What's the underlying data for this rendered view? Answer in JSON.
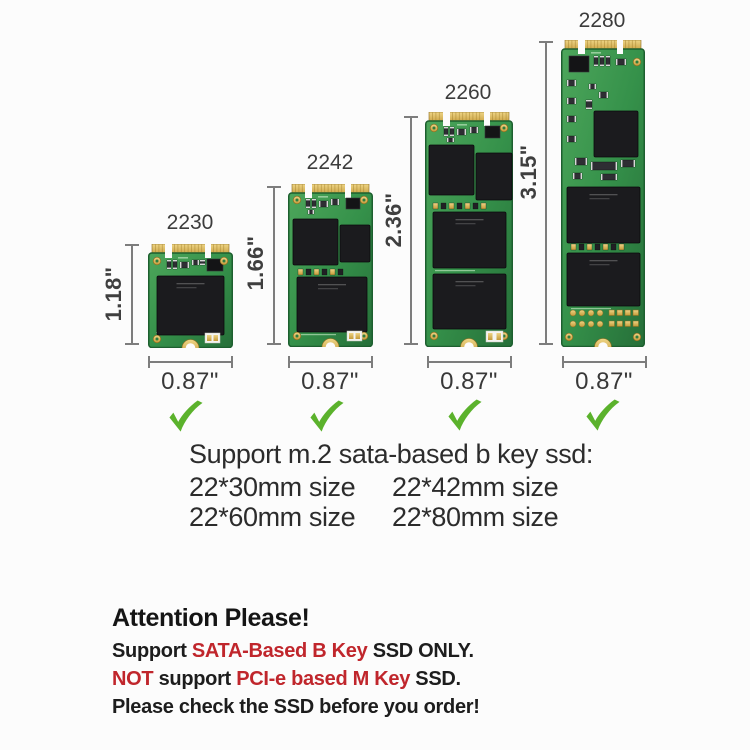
{
  "colors": {
    "background": "#fcfcfc",
    "checkmark_green": "#5bb22c",
    "alert_red": "#c0262c",
    "pcb_green": "#35914a",
    "gold": "#c49a38",
    "chip_black": "#1b1b1e",
    "dim_gray": "#7d7d7d",
    "text_dark": "#2c2c2c"
  },
  "cards": [
    {
      "label": "2230",
      "height_label": "1.18\"",
      "width_label": "0.87\""
    },
    {
      "label": "2242",
      "height_label": "1.66\"",
      "width_label": "0.87\""
    },
    {
      "label": "2260",
      "height_label": "2.36\"",
      "width_label": "0.87\""
    },
    {
      "label": "2280",
      "height_label": "3.15\"",
      "width_label": "0.87\""
    }
  ],
  "support": {
    "heading": "Support m.2 sata-based b key ssd:",
    "row1": {
      "col1": "22*30mm size",
      "col2": "22*42mm size"
    },
    "row2": {
      "col1": "22*60mm size",
      "col2": "22*80mm size"
    }
  },
  "attention": {
    "title": "Attention Please!",
    "line1": {
      "a": "Support ",
      "b": "SATA-Based B Key",
      "c": " SSD ONLY."
    },
    "line2": {
      "a": "NOT",
      "b": " support ",
      "c": "PCI-e based M Key",
      "d": " SSD."
    },
    "line3": "Please check the SSD before you order!"
  }
}
